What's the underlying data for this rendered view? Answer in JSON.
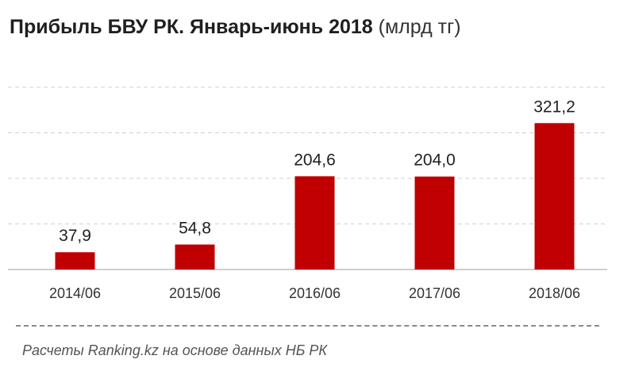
{
  "title": {
    "main": "Прибыль БВУ РК. Январь-июнь 2018",
    "unit": "(млрд тг)"
  },
  "chart_data": {
    "type": "bar",
    "categories": [
      "2014/06",
      "2015/06",
      "2016/06",
      "2017/06",
      "2018/06"
    ],
    "values": [
      37.9,
      54.8,
      204.6,
      204.0,
      321.2
    ],
    "data_labels": [
      "37,9",
      "54,8",
      "204,6",
      "204,0",
      "321,2"
    ],
    "ylim": [
      0,
      400
    ],
    "grid": true,
    "grid_style": "dashed",
    "bar_color": "#c00000",
    "legend": "none"
  },
  "source": "Расчеты Ranking.kz на основе данных  НБ РК"
}
